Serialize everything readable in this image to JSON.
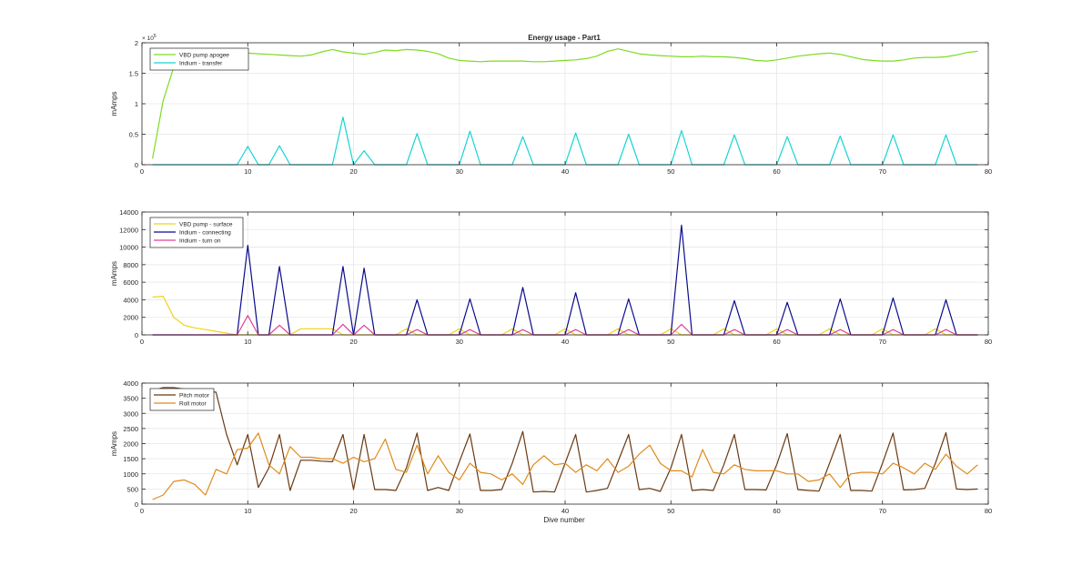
{
  "title": "Energy usage - Part1",
  "xlabel": "Dive number",
  "chart_data": [
    {
      "type": "line",
      "title": "Energy usage - Part1",
      "xlabel": "",
      "ylabel": "mAmps",
      "exponent_label": "× 10",
      "exponent_power": "5",
      "xlim": [
        0,
        80
      ],
      "ylim": [
        0,
        200000
      ],
      "xticks": [
        0,
        10,
        20,
        30,
        40,
        50,
        60,
        70,
        80
      ],
      "yticks": [
        0,
        50000,
        100000,
        150000,
        200000
      ],
      "ytick_labels": [
        "0",
        "0.5",
        "1",
        "1.5",
        "2"
      ],
      "grid": true,
      "legend_position": "top-left",
      "x": [
        1,
        2,
        3,
        4,
        5,
        6,
        7,
        8,
        9,
        10,
        11,
        12,
        13,
        14,
        15,
        16,
        17,
        18,
        19,
        20,
        21,
        22,
        23,
        24,
        25,
        26,
        27,
        28,
        29,
        30,
        31,
        32,
        33,
        34,
        35,
        36,
        37,
        38,
        39,
        40,
        41,
        42,
        43,
        44,
        45,
        46,
        47,
        48,
        49,
        50,
        51,
        52,
        53,
        54,
        55,
        56,
        57,
        58,
        59,
        60,
        61,
        62,
        63,
        64,
        65,
        66,
        67,
        68,
        69,
        70,
        71,
        72,
        73,
        74,
        75,
        76,
        77,
        78,
        79
      ],
      "series": [
        {
          "name": "VBD pump apogee",
          "color": "#7ddc1f",
          "values": [
            10000,
            105000,
            160000,
            185000,
            188000,
            187000,
            186000,
            185000,
            184000,
            183000,
            182000,
            181000,
            180000,
            179000,
            178000,
            180000,
            185000,
            189000,
            185000,
            183000,
            181000,
            184000,
            188000,
            187000,
            189000,
            188000,
            186000,
            182000,
            175000,
            171000,
            170000,
            169000,
            170000,
            170000,
            170000,
            170000,
            169000,
            169000,
            170000,
            171000,
            172000,
            174000,
            178000,
            186000,
            190000,
            186000,
            182000,
            180000,
            179000,
            178000,
            177000,
            177000,
            178000,
            177000,
            177000,
            176000,
            174000,
            171000,
            170000,
            172000,
            175000,
            178000,
            180000,
            182000,
            183000,
            181000,
            177000,
            173000,
            171000,
            170000,
            170000,
            172000,
            175000,
            176000,
            176000,
            177000,
            180000,
            184000,
            186000
          ]
        },
        {
          "name": "Iridium - transfer",
          "color": "#17d4d4",
          "values": [
            0,
            0,
            0,
            0,
            0,
            0,
            0,
            0,
            0,
            30000,
            0,
            0,
            31000,
            0,
            0,
            0,
            0,
            0,
            78000,
            0,
            23000,
            0,
            0,
            0,
            0,
            51000,
            0,
            0,
            0,
            0,
            55000,
            0,
            0,
            0,
            0,
            46000,
            0,
            0,
            0,
            0,
            52000,
            0,
            0,
            0,
            0,
            50000,
            0,
            0,
            0,
            0,
            56000,
            0,
            0,
            0,
            0,
            49000,
            0,
            0,
            0,
            0,
            46000,
            0,
            0,
            0,
            0,
            47000,
            0,
            0,
            0,
            0,
            49000,
            0,
            0,
            0,
            0,
            49000,
            0,
            0,
            0
          ]
        }
      ]
    },
    {
      "type": "line",
      "title": "",
      "xlabel": "",
      "ylabel": "mAmps",
      "xlim": [
        0,
        80
      ],
      "ylim": [
        0,
        14000
      ],
      "xticks": [
        0,
        10,
        20,
        30,
        40,
        50,
        60,
        70,
        80
      ],
      "yticks": [
        0,
        2000,
        4000,
        6000,
        8000,
        10000,
        12000,
        14000
      ],
      "ytick_labels": [
        "0",
        "2000",
        "4000",
        "6000",
        "8000",
        "10000",
        "12000",
        "14000"
      ],
      "grid": true,
      "legend_position": "top-left",
      "x": [
        1,
        2,
        3,
        4,
        5,
        6,
        7,
        8,
        9,
        10,
        11,
        12,
        13,
        14,
        15,
        16,
        17,
        18,
        19,
        20,
        21,
        22,
        23,
        24,
        25,
        26,
        27,
        28,
        29,
        30,
        31,
        32,
        33,
        34,
        35,
        36,
        37,
        38,
        39,
        40,
        41,
        42,
        43,
        44,
        45,
        46,
        47,
        48,
        49,
        50,
        51,
        52,
        53,
        54,
        55,
        56,
        57,
        58,
        59,
        60,
        61,
        62,
        63,
        64,
        65,
        66,
        67,
        68,
        69,
        70,
        71,
        72,
        73,
        74,
        75,
        76,
        77,
        78,
        79
      ],
      "series": [
        {
          "name": "VBD pump - surface",
          "color": "#f0d21a",
          "values": [
            4300,
            4400,
            2000,
            1100,
            800,
            600,
            400,
            200,
            0,
            0,
            0,
            0,
            0,
            0,
            700,
            700,
            700,
            700,
            0,
            0,
            0,
            0,
            0,
            0,
            700,
            0,
            0,
            0,
            0,
            700,
            0,
            0,
            0,
            0,
            700,
            0,
            0,
            0,
            0,
            700,
            0,
            0,
            0,
            0,
            700,
            0,
            0,
            0,
            0,
            700,
            0,
            0,
            0,
            0,
            700,
            0,
            0,
            0,
            0,
            700,
            0,
            0,
            0,
            0,
            700,
            0,
            0,
            0,
            0,
            700,
            0,
            0,
            0,
            0,
            700,
            0,
            0,
            0,
            0
          ]
        },
        {
          "name": "Iridium - connecting",
          "color": "#0a0a8c",
          "values": [
            0,
            0,
            0,
            0,
            0,
            0,
            0,
            0,
            0,
            10200,
            0,
            0,
            7800,
            0,
            0,
            0,
            0,
            0,
            7800,
            0,
            7600,
            0,
            0,
            0,
            0,
            4000,
            0,
            0,
            0,
            0,
            4100,
            0,
            0,
            0,
            0,
            5400,
            0,
            0,
            0,
            0,
            4800,
            0,
            0,
            0,
            0,
            4100,
            0,
            0,
            0,
            0,
            12500,
            0,
            0,
            0,
            0,
            3900,
            0,
            0,
            0,
            0,
            3700,
            0,
            0,
            0,
            0,
            4100,
            0,
            0,
            0,
            0,
            4200,
            0,
            0,
            0,
            0,
            4000,
            0,
            0,
            0
          ]
        },
        {
          "name": "Iridium - turn on",
          "color": "#e0409a",
          "values": [
            0,
            0,
            0,
            0,
            0,
            0,
            0,
            0,
            0,
            2200,
            0,
            0,
            1100,
            0,
            0,
            0,
            0,
            0,
            1200,
            0,
            1100,
            0,
            0,
            0,
            0,
            600,
            0,
            0,
            0,
            0,
            600,
            0,
            0,
            0,
            0,
            600,
            0,
            0,
            0,
            0,
            600,
            0,
            0,
            0,
            0,
            600,
            0,
            0,
            0,
            0,
            1200,
            0,
            0,
            0,
            0,
            600,
            0,
            0,
            0,
            0,
            600,
            0,
            0,
            0,
            0,
            600,
            0,
            0,
            0,
            0,
            600,
            0,
            0,
            0,
            0,
            600,
            0,
            0,
            0
          ]
        }
      ]
    },
    {
      "type": "line",
      "title": "",
      "xlabel": "Dive number",
      "ylabel": "mAmps",
      "xlim": [
        0,
        80
      ],
      "ylim": [
        0,
        4000
      ],
      "xticks": [
        0,
        10,
        20,
        30,
        40,
        50,
        60,
        70,
        80
      ],
      "yticks": [
        0,
        500,
        1000,
        1500,
        2000,
        2500,
        3000,
        3500,
        4000
      ],
      "ytick_labels": [
        "0",
        "500",
        "1000",
        "1500",
        "2000",
        "2500",
        "3000",
        "3500",
        "4000"
      ],
      "grid": true,
      "legend_position": "top-left",
      "x": [
        1,
        2,
        3,
        4,
        5,
        6,
        7,
        8,
        9,
        10,
        11,
        12,
        13,
        14,
        15,
        16,
        17,
        18,
        19,
        20,
        21,
        22,
        23,
        24,
        25,
        26,
        27,
        28,
        29,
        30,
        31,
        32,
        33,
        34,
        35,
        36,
        37,
        38,
        39,
        40,
        41,
        42,
        43,
        44,
        45,
        46,
        47,
        48,
        49,
        50,
        51,
        52,
        53,
        54,
        55,
        56,
        57,
        58,
        59,
        60,
        61,
        62,
        63,
        64,
        65,
        66,
        67,
        68,
        69,
        70,
        71,
        72,
        73,
        74,
        75,
        76,
        77,
        78,
        79
      ],
      "series": [
        {
          "name": "Pitch motor",
          "color": "#6b3a12",
          "values": [
            3750,
            3850,
            3850,
            3800,
            3750,
            3750,
            3700,
            2300,
            1300,
            2300,
            550,
            1200,
            2300,
            450,
            1450,
            1450,
            1420,
            1400,
            2300,
            480,
            2300,
            480,
            480,
            450,
            1200,
            2350,
            450,
            550,
            450,
            1400,
            2320,
            450,
            450,
            480,
            1350,
            2400,
            400,
            420,
            400,
            1350,
            2300,
            400,
            450,
            520,
            1400,
            2300,
            480,
            520,
            420,
            1200,
            2300,
            450,
            480,
            450,
            1300,
            2300,
            480,
            480,
            470,
            1300,
            2330,
            480,
            450,
            430,
            1350,
            2300,
            450,
            450,
            430,
            1350,
            2350,
            470,
            480,
            520,
            1350,
            2360,
            500,
            480,
            500
          ]
        },
        {
          "name": "Roll motor",
          "color": "#e08a1a",
          "values": [
            150,
            300,
            750,
            800,
            650,
            300,
            1150,
            1000,
            1800,
            1850,
            2350,
            1300,
            1000,
            1900,
            1550,
            1550,
            1500,
            1500,
            1350,
            1550,
            1400,
            1500,
            2150,
            1150,
            1050,
            1950,
            1000,
            1600,
            1050,
            800,
            1350,
            1050,
            1000,
            800,
            1000,
            650,
            1300,
            1600,
            1300,
            1350,
            1050,
            1300,
            1100,
            1500,
            1050,
            1250,
            1650,
            1950,
            1350,
            1100,
            1100,
            900,
            1800,
            1050,
            1000,
            1300,
            1150,
            1100,
            1100,
            1100,
            1000,
            1000,
            750,
            800,
            1000,
            550,
            1000,
            1050,
            1050,
            1000,
            1350,
            1200,
            1000,
            1350,
            1150,
            1650,
            1250,
            1000,
            1300
          ]
        }
      ]
    }
  ]
}
